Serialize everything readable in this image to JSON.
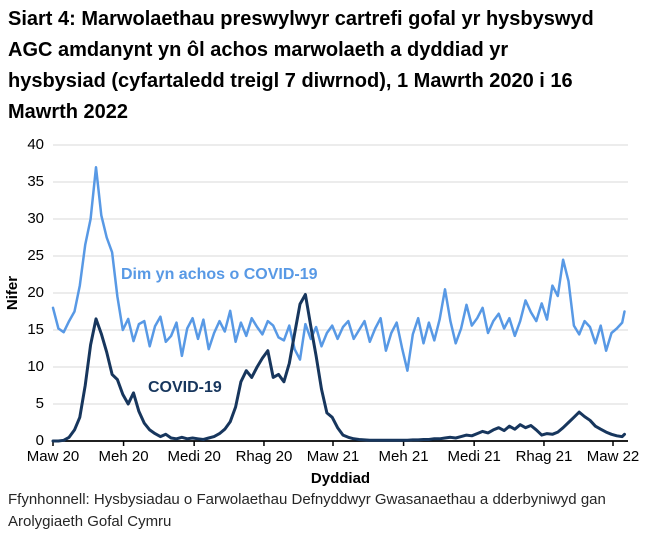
{
  "title": "Siart 4: Marwolaethau preswylwyr cartrefi gofal yr hysbyswyd AGC amdanynt yn ôl achos marwolaeth a dyddiad yr hysbysiad (cyfartaledd treigl 7 diwrnod), 1 Mawrth 2020 i 16 Mawrth 2022",
  "footer": "Ffynhonnell: Hysbysiadau o Farwolaethau Defnyddwyr Gwasanaethau a dderbyniwyd gan Arolygiaeth Gofal Cymru",
  "colors": {
    "non_covid_line": "#5899E5",
    "covid_line": "#17365D",
    "gridline": "#D9D9D9",
    "axis": "#000000"
  },
  "chart_data": {
    "type": "line",
    "title": "Siart 4: Marwolaethau preswylwyr cartrefi gofal yr hysbyswyd AGC amdanynt yn ôl achos marwolaeth a dyddiad yr hysbysiad (cyfartaledd treigl 7 diwrnod), 1 Mawrth 2020 i 16 Mawrth 2022",
    "xlabel": "Dyddiad",
    "ylabel": "Nifer",
    "ylim": [
      0,
      40
    ],
    "yticks": [
      0,
      5,
      10,
      15,
      20,
      25,
      30,
      35,
      40
    ],
    "grid": "horizontal",
    "legend_position": "inline-labels",
    "x_unit": "days since 2020-03-01 (series sampled ~weekly from the 7-day rolling average)",
    "x_tick_days": [
      0,
      92,
      184,
      275,
      365,
      457,
      549,
      640,
      730
    ],
    "x_tick_labels": [
      "Maw 20",
      "Meh 20",
      "Medi 20",
      "Rhag 20",
      "Maw 21",
      "Meh 21",
      "Medi 21",
      "Rhag 21",
      "Maw 22"
    ],
    "x_max_day": 745,
    "x_days": [
      0,
      7,
      14,
      21,
      28,
      35,
      42,
      49,
      56,
      63,
      70,
      77,
      84,
      91,
      98,
      105,
      112,
      119,
      126,
      133,
      140,
      147,
      154,
      161,
      168,
      175,
      182,
      189,
      196,
      203,
      210,
      217,
      224,
      231,
      238,
      245,
      252,
      259,
      266,
      273,
      280,
      287,
      294,
      301,
      308,
      315,
      322,
      329,
      336,
      343,
      350,
      357,
      364,
      371,
      378,
      385,
      392,
      399,
      406,
      413,
      420,
      427,
      434,
      441,
      448,
      455,
      462,
      469,
      476,
      483,
      490,
      497,
      504,
      511,
      518,
      525,
      532,
      539,
      546,
      553,
      560,
      567,
      574,
      581,
      588,
      595,
      602,
      609,
      616,
      623,
      630,
      637,
      644,
      651,
      658,
      665,
      672,
      679,
      686,
      693,
      700,
      707,
      714,
      721,
      728,
      735,
      742,
      745
    ],
    "series": [
      {
        "name": "Dim yn achos o COVID-19",
        "color": "#5899E5",
        "values": [
          18.0,
          15.2,
          14.7,
          16.2,
          17.5,
          21.0,
          26.5,
          30.0,
          37.0,
          30.5,
          27.5,
          25.5,
          19.5,
          15.0,
          16.5,
          13.5,
          15.8,
          16.2,
          12.8,
          15.5,
          16.8,
          13.4,
          14.2,
          16.0,
          11.5,
          15.2,
          16.6,
          13.8,
          16.4,
          12.4,
          14.6,
          16.2,
          14.8,
          17.6,
          13.4,
          16.0,
          14.2,
          16.6,
          15.4,
          14.4,
          16.2,
          15.6,
          14.0,
          13.6,
          15.6,
          12.4,
          11.0,
          15.8,
          13.8,
          15.4,
          12.8,
          14.6,
          15.6,
          13.8,
          15.4,
          16.2,
          13.8,
          15.0,
          16.2,
          13.4,
          15.2,
          16.6,
          12.2,
          14.6,
          16.0,
          12.6,
          9.5,
          14.4,
          16.6,
          13.2,
          16.0,
          13.6,
          16.4,
          20.5,
          16.2,
          13.2,
          15.2,
          18.4,
          15.6,
          16.6,
          18.0,
          14.6,
          16.2,
          17.2,
          15.2,
          16.6,
          14.2,
          16.2,
          19.0,
          17.4,
          16.2,
          18.6,
          16.4,
          21.0,
          19.6,
          24.5,
          21.6,
          15.6,
          14.4,
          16.2,
          15.4,
          13.2,
          15.6,
          12.2,
          14.6,
          15.2,
          16.0,
          17.5
        ]
      },
      {
        "name": "COVID-19",
        "color": "#17365D",
        "values": [
          0.0,
          0.0,
          0.1,
          0.5,
          1.5,
          3.2,
          7.5,
          13.0,
          16.5,
          14.5,
          12.0,
          9.0,
          8.3,
          6.3,
          5.0,
          6.5,
          4.0,
          2.4,
          1.5,
          1.0,
          0.6,
          0.9,
          0.4,
          0.3,
          0.5,
          0.3,
          0.4,
          0.3,
          0.2,
          0.4,
          0.6,
          1.0,
          1.6,
          2.6,
          4.6,
          8.0,
          9.5,
          8.6,
          10.0,
          11.2,
          12.2,
          8.6,
          9.0,
          8.0,
          10.5,
          14.5,
          18.5,
          19.8,
          15.5,
          11.5,
          7.0,
          3.8,
          3.2,
          1.8,
          0.8,
          0.5,
          0.3,
          0.2,
          0.15,
          0.1,
          0.1,
          0.1,
          0.1,
          0.1,
          0.1,
          0.1,
          0.1,
          0.15,
          0.15,
          0.2,
          0.2,
          0.3,
          0.3,
          0.4,
          0.5,
          0.4,
          0.6,
          0.8,
          0.7,
          1.0,
          1.3,
          1.1,
          1.5,
          1.8,
          1.4,
          2.0,
          1.6,
          2.2,
          1.8,
          2.1,
          1.5,
          0.8,
          1.0,
          0.9,
          1.2,
          1.8,
          2.5,
          3.2,
          3.9,
          3.3,
          2.8,
          2.0,
          1.6,
          1.2,
          0.9,
          0.7,
          0.6,
          0.9
        ]
      }
    ]
  }
}
